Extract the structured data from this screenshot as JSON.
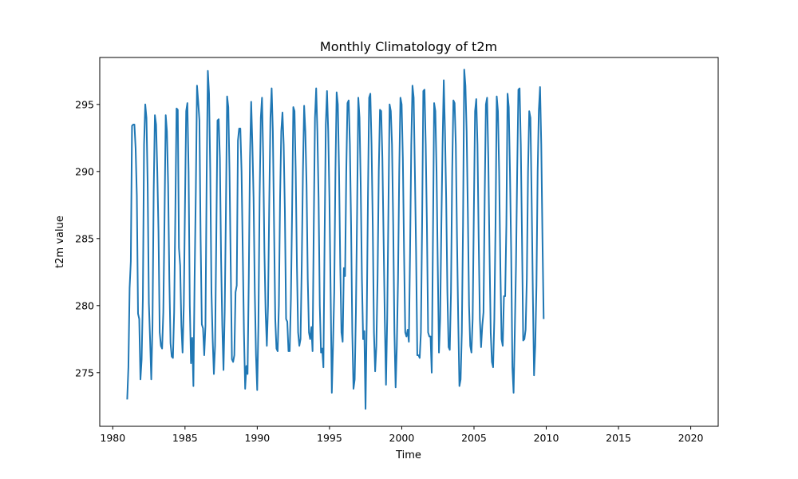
{
  "chart_data": {
    "type": "line",
    "title": "Monthly Climatology of t2m",
    "xlabel": "Time",
    "ylabel": "t2m value",
    "xlim": [
      1979.1,
      2021.9
    ],
    "ylim": [
      271.0,
      298.5
    ],
    "xticks": [
      1980,
      1985,
      1990,
      1995,
      2000,
      2005,
      2010,
      2015,
      2020
    ],
    "yticks": [
      275,
      280,
      285,
      290,
      295
    ],
    "grid": false,
    "color": "#1f77b4",
    "x_start": 1981.0,
    "x_step": 0.0833,
    "series": [
      {
        "values": [
          273.0,
          275.4,
          281.3,
          283.3,
          293.4,
          293.5,
          293.5,
          291.7,
          288.2,
          279.4,
          279.0,
          274.5,
          276.0,
          280.5,
          292.0,
          295.0,
          294.0,
          289.0,
          280.2,
          277.5,
          274.5,
          278.5,
          288.5,
          294.2,
          293.5,
          290.0,
          285.5,
          278.0,
          277.0,
          276.8,
          279.5,
          286.5,
          294.2,
          293.0,
          289.0,
          282.0,
          277.2,
          276.2,
          276.1,
          279.5,
          287.0,
          294.7,
          294.6,
          284.3,
          283.0,
          278.5,
          276.5,
          280.0,
          287.5,
          294.5,
          295.1,
          290.0,
          280.0,
          275.7,
          277.6,
          274.0,
          282.0,
          288.5,
          296.4,
          295.2,
          293.8,
          285.0,
          278.6,
          278.3,
          276.3,
          278.5,
          289.5,
          297.5,
          295.8,
          290.0,
          281.0,
          277.5,
          274.9,
          277.0,
          285.0,
          293.8,
          293.9,
          291.0,
          283.5,
          278.5,
          275.2,
          279.5,
          287.0,
          295.6,
          294.8,
          290.0,
          283.0,
          276.0,
          275.8,
          276.3,
          281.0,
          281.5,
          292.3,
          293.2,
          293.2,
          290.0,
          284.0,
          278.0,
          273.8,
          275.5,
          274.9,
          282.0,
          291.0,
          295.2,
          292.0,
          288.0,
          281.0,
          276.3,
          273.7,
          278.5,
          288.0,
          294.0,
          295.5,
          291.0,
          284.0,
          279.5,
          277.0,
          280.0,
          287.5,
          294.0,
          296.2,
          293.0,
          286.0,
          279.0,
          276.8,
          276.6,
          280.0,
          288.0,
          293.0,
          294.4,
          292.0,
          287.0,
          279.0,
          278.8,
          276.6,
          276.6,
          280.5,
          287.0,
          294.8,
          294.5,
          290.0,
          283.0,
          278.0,
          277.0,
          277.5,
          283.0,
          290.0,
          294.9,
          293.0,
          289.0,
          282.0,
          278.0,
          277.5,
          278.4,
          276.6,
          286.0,
          294.0,
          296.2,
          293.0,
          288.0,
          280.0,
          276.5,
          276.8,
          275.4,
          285.0,
          293.5,
          296.0,
          293.0,
          288.0,
          281.0,
          273.5,
          277.0,
          281.0,
          290.0,
          295.9,
          295.0,
          290.0,
          283.0,
          278.0,
          277.3,
          282.8,
          282.2,
          290.0,
          295.1,
          295.3,
          292.0,
          286.0,
          278.0,
          273.8,
          274.5,
          279.5,
          287.0,
          295.5,
          294.0,
          289.0,
          282.0,
          277.5,
          278.1,
          272.3,
          279.0,
          288.0,
          295.5,
          295.8,
          292.0,
          286.0,
          278.0,
          275.1,
          277.0,
          282.0,
          290.0,
          294.6,
          294.5,
          291.0,
          285.0,
          279.0,
          274.1,
          279.0,
          287.0,
          295.0,
          294.5,
          292.0,
          286.0,
          278.0,
          273.9,
          277.0,
          282.0,
          290.0,
          295.5,
          295.0,
          291.0,
          284.0,
          278.0,
          277.7,
          278.2,
          277.3,
          284.0,
          292.0,
          296.4,
          295.5,
          290.0,
          284.0,
          276.3,
          276.3,
          276.1,
          278.0,
          286.0,
          296.0,
          296.1,
          292.0,
          286.0,
          278.0,
          277.7,
          277.7,
          275.0,
          285.0,
          295.1,
          294.5,
          290.0,
          283.0,
          276.5,
          279.0,
          286.0,
          292.0,
          296.8,
          293.0,
          288.0,
          281.0,
          276.9,
          276.7,
          281.0,
          290.0,
          295.3,
          295.1,
          292.0,
          285.0,
          279.0,
          274.0,
          274.5,
          278.0,
          286.0,
          297.6,
          296.4,
          293.0,
          287.0,
          280.0,
          277.0,
          276.5,
          279.0,
          287.0,
          294.5,
          295.4,
          292.0,
          285.0,
          279.0,
          276.9,
          278.5,
          279.5,
          288.0,
          295.0,
          295.5,
          291.0,
          284.0,
          278.0,
          275.8,
          275.4,
          279.0,
          286.0,
          295.6,
          294.5,
          290.0,
          283.0,
          277.5,
          277.0,
          280.7,
          280.7,
          286.0,
          295.8,
          294.8,
          290.0,
          284.0,
          275.4,
          273.5,
          278.0,
          283.0,
          290.0,
          296.1,
          296.2,
          292.0,
          285.0,
          277.4,
          277.5,
          278.2,
          282.0,
          290.0,
          294.5,
          294.0,
          288.0,
          281.0,
          274.8,
          277.0,
          281.5,
          290.0,
          294.6,
          296.3,
          292.0,
          285.0,
          279.0
        ]
      }
    ]
  }
}
